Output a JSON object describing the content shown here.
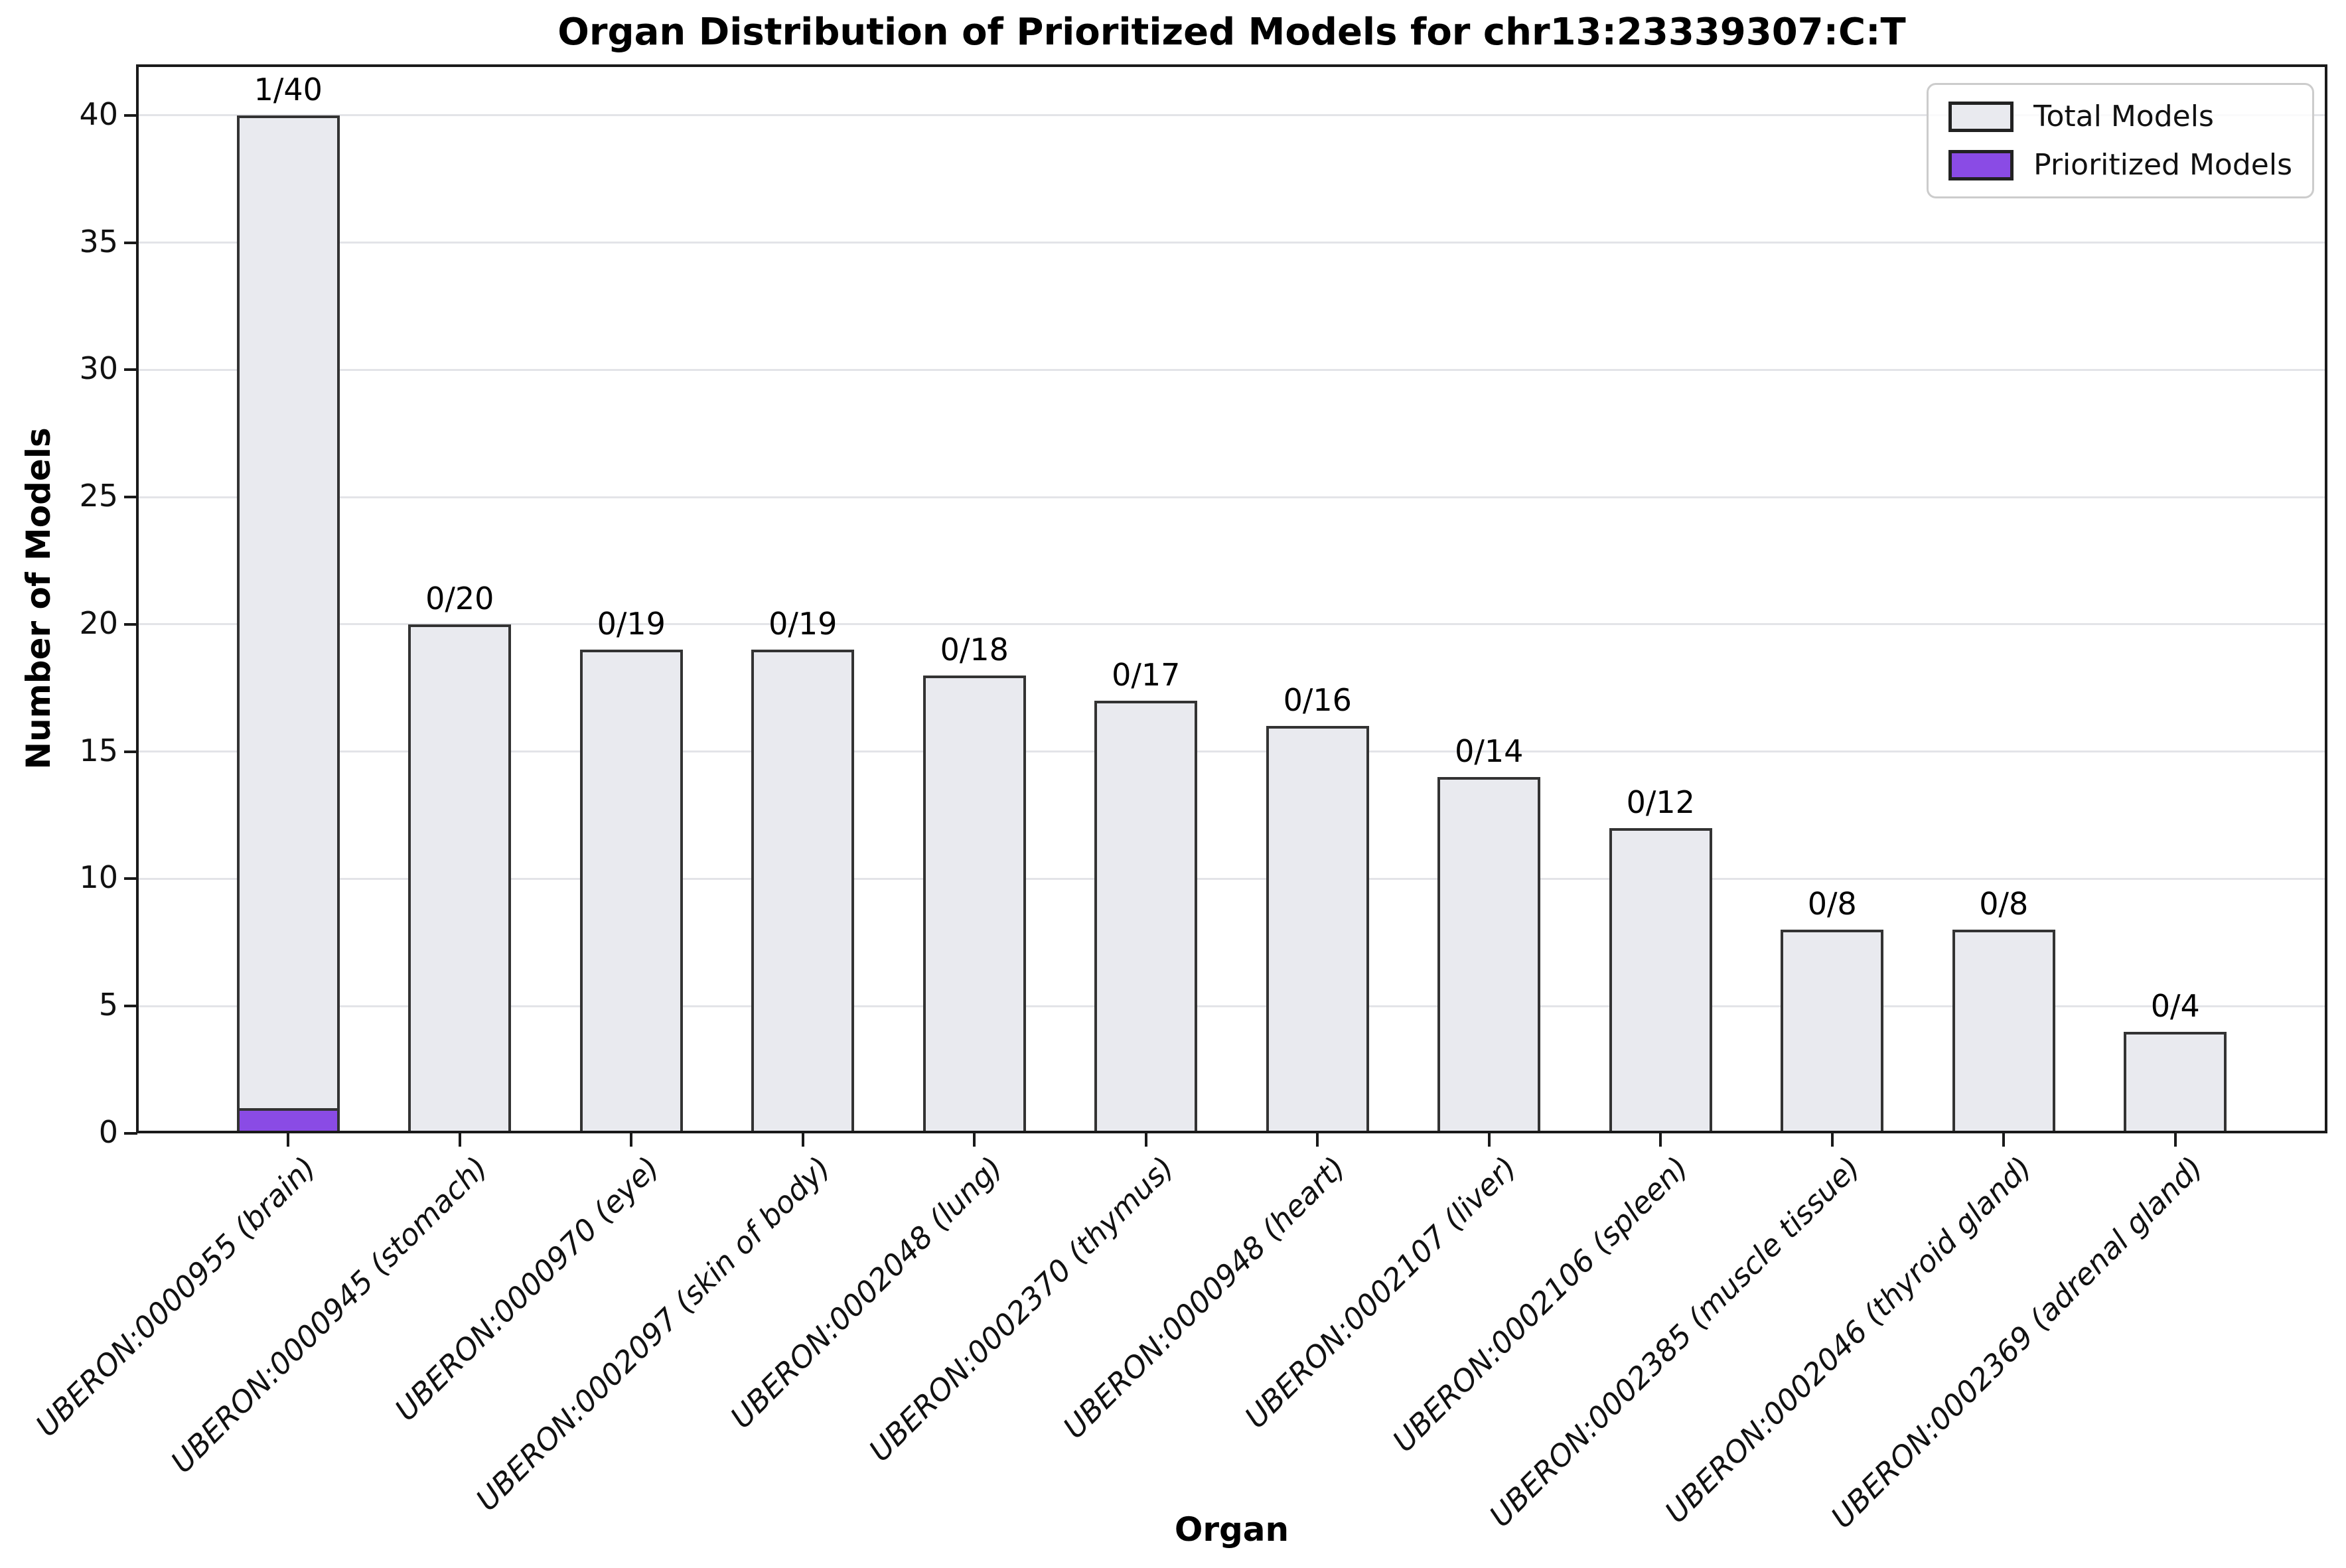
{
  "chart_data": {
    "type": "bar",
    "title": "Organ Distribution of Prioritized Models for chr13:23339307:C:T",
    "xlabel": "Organ",
    "ylabel": "Number of Models",
    "ylim": [
      0,
      42
    ],
    "yticks": [
      0,
      5,
      10,
      15,
      20,
      25,
      30,
      35,
      40
    ],
    "grid": true,
    "legend_position": "upper right",
    "categories": [
      "UBERON:0000955 (brain)",
      "UBERON:0000945 (stomach)",
      "UBERON:0000970 (eye)",
      "UBERON:0002097 (skin of body)",
      "UBERON:0002048 (lung)",
      "UBERON:0002370 (thymus)",
      "UBERON:0000948 (heart)",
      "UBERON:0002107 (liver)",
      "UBERON:0002106 (spleen)",
      "UBERON:0002385 (muscle tissue)",
      "UBERON:0002046 (thyroid gland)",
      "UBERON:0002369 (adrenal gland)"
    ],
    "series": [
      {
        "name": "Total Models",
        "color": "#e9eaef",
        "values": [
          40,
          20,
          19,
          19,
          18,
          17,
          16,
          14,
          12,
          8,
          8,
          4
        ]
      },
      {
        "name": "Prioritized Models",
        "color": "#8a4be5",
        "values": [
          1,
          0,
          0,
          0,
          0,
          0,
          0,
          0,
          0,
          0,
          0,
          0
        ]
      }
    ],
    "bar_labels": [
      "1/40",
      "0/20",
      "0/19",
      "0/19",
      "0/18",
      "0/17",
      "0/16",
      "0/14",
      "0/12",
      "0/8",
      "0/8",
      "0/4"
    ],
    "edge_color": "#333333"
  }
}
